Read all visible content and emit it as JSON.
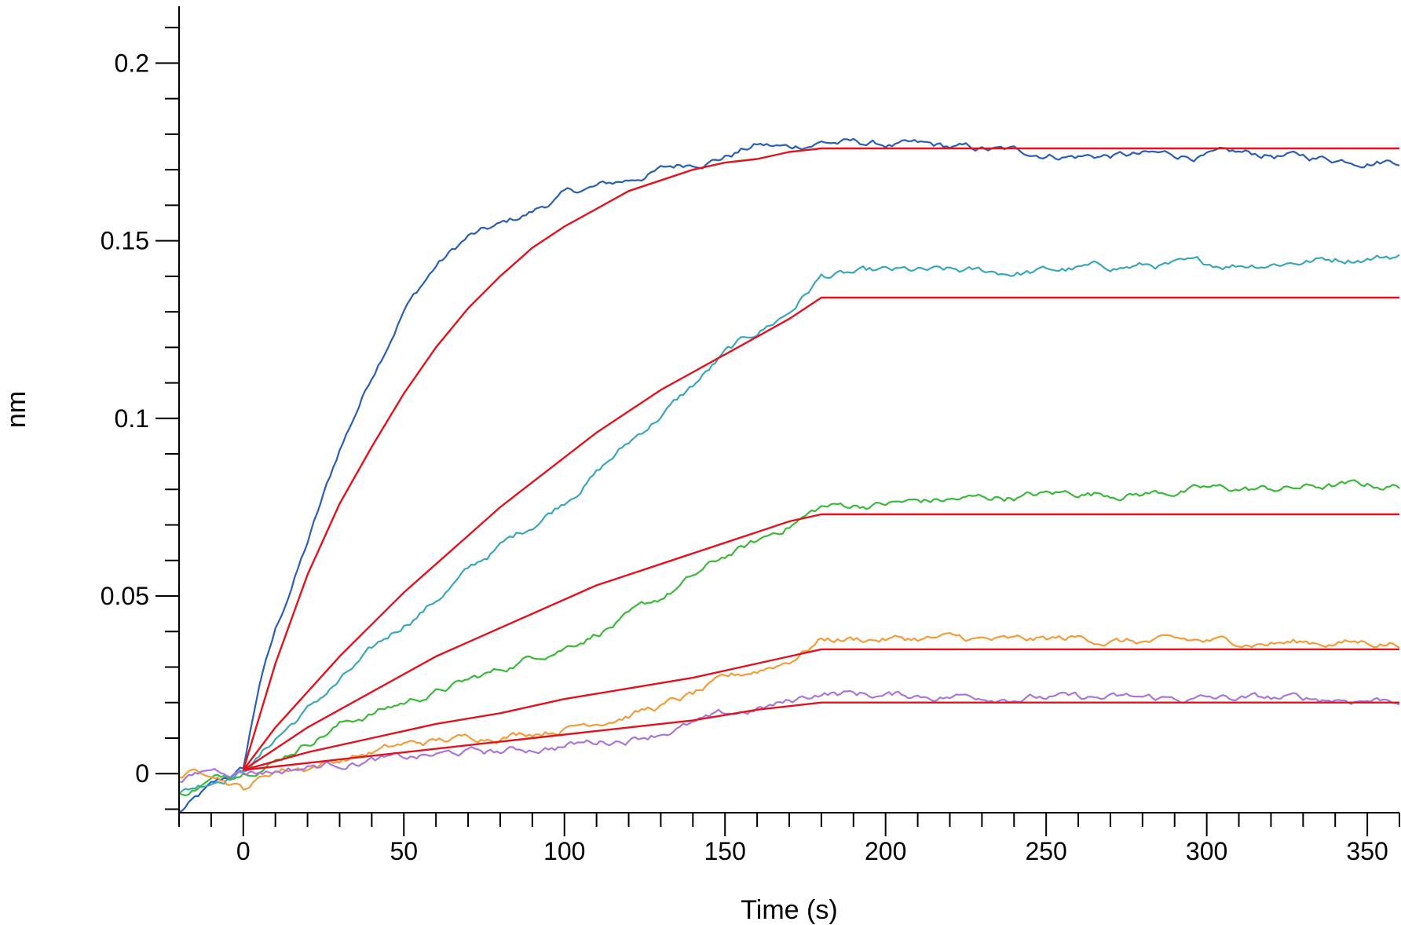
{
  "chart_data": {
    "type": "line",
    "title": "",
    "xlabel": "Time (s)",
    "ylabel": "nm",
    "xlim": [
      -20,
      360
    ],
    "ylim": [
      -0.011,
      0.216
    ],
    "x_ticks": [
      0,
      50,
      100,
      150,
      200,
      250,
      300,
      350
    ],
    "x_tick_labels": [
      "0",
      "50",
      "100",
      "150",
      "200",
      "250",
      "300",
      "350"
    ],
    "y_ticks": [
      0,
      0.05,
      0.1,
      0.15,
      0.2
    ],
    "y_tick_labels": [
      "0",
      "0.05",
      "0.1",
      "0.15",
      "0.2"
    ],
    "association_end_s": 180,
    "legend": "none",
    "grid": false,
    "series": [
      {
        "color": "#2b5fb3",
        "kind": "measured",
        "x": [
          -20,
          -10,
          0,
          5,
          10,
          20,
          30,
          40,
          50,
          60,
          70,
          80,
          90,
          100,
          110,
          120,
          130,
          140,
          150,
          160,
          170,
          180,
          200,
          220,
          240,
          260,
          280,
          300,
          320,
          340,
          360
        ],
        "y": [
          -0.011,
          -0.004,
          0.001,
          0.025,
          0.04,
          0.065,
          0.091,
          0.112,
          0.131,
          0.143,
          0.151,
          0.154,
          0.158,
          0.163,
          0.165,
          0.167,
          0.17,
          0.172,
          0.174,
          0.177,
          0.176,
          0.178,
          0.177,
          0.176,
          0.175,
          0.174,
          0.174,
          0.174,
          0.174,
          0.173,
          0.173
        ]
      },
      {
        "color": "#3ba7b8",
        "kind": "measured",
        "x": [
          -20,
          -10,
          0,
          5,
          10,
          20,
          30,
          40,
          50,
          60,
          70,
          80,
          90,
          100,
          110,
          120,
          130,
          140,
          150,
          160,
          170,
          180,
          200,
          220,
          240,
          260,
          280,
          300,
          320,
          340,
          360
        ],
        "y": [
          -0.006,
          -0.002,
          0.001,
          0.005,
          0.01,
          0.018,
          0.026,
          0.034,
          0.042,
          0.049,
          0.057,
          0.064,
          0.07,
          0.077,
          0.085,
          0.093,
          0.101,
          0.109,
          0.118,
          0.124,
          0.13,
          0.14,
          0.141,
          0.141,
          0.141,
          0.142,
          0.143,
          0.143,
          0.144,
          0.145,
          0.146
        ]
      },
      {
        "color": "#3db83a",
        "kind": "measured",
        "x": [
          -20,
          -10,
          0,
          10,
          20,
          30,
          40,
          50,
          60,
          70,
          80,
          90,
          100,
          110,
          120,
          130,
          140,
          150,
          160,
          170,
          180,
          200,
          220,
          240,
          260,
          280,
          300,
          320,
          340,
          360
        ],
        "y": [
          -0.006,
          -0.002,
          0.001,
          0.004,
          0.009,
          0.014,
          0.017,
          0.02,
          0.023,
          0.026,
          0.029,
          0.033,
          0.036,
          0.04,
          0.044,
          0.049,
          0.055,
          0.061,
          0.065,
          0.07,
          0.075,
          0.076,
          0.077,
          0.078,
          0.079,
          0.079,
          0.08,
          0.08,
          0.081,
          0.081
        ]
      },
      {
        "color": "#f39c3c",
        "kind": "measured",
        "x": [
          -20,
          -10,
          0,
          10,
          20,
          30,
          40,
          50,
          60,
          70,
          80,
          90,
          100,
          110,
          120,
          130,
          140,
          150,
          160,
          170,
          180,
          200,
          220,
          240,
          260,
          280,
          300,
          320,
          340,
          360
        ],
        "y": [
          -0.001,
          0.001,
          -0.004,
          0.001,
          0.002,
          0.004,
          0.006,
          0.008,
          0.009,
          0.01,
          0.011,
          0.012,
          0.013,
          0.015,
          0.017,
          0.019,
          0.022,
          0.026,
          0.029,
          0.032,
          0.038,
          0.038,
          0.038,
          0.037,
          0.038,
          0.037,
          0.037,
          0.037,
          0.037,
          0.037
        ]
      },
      {
        "color": "#a877d8",
        "kind": "measured",
        "x": [
          -20,
          -10,
          0,
          10,
          20,
          30,
          40,
          50,
          60,
          70,
          80,
          90,
          100,
          110,
          120,
          130,
          140,
          150,
          160,
          170,
          180,
          200,
          220,
          240,
          260,
          280,
          300,
          320,
          340,
          360
        ],
        "y": [
          -0.003,
          0.001,
          0.001,
          0.001,
          0.002,
          0.003,
          0.004,
          0.004,
          0.005,
          0.006,
          0.006,
          0.007,
          0.008,
          0.009,
          0.01,
          0.012,
          0.014,
          0.016,
          0.018,
          0.02,
          0.023,
          0.022,
          0.022,
          0.022,
          0.021,
          0.021,
          0.021,
          0.021,
          0.021,
          0.021
        ]
      },
      {
        "color": "#e0141e",
        "kind": "fit",
        "x": [
          0,
          10,
          20,
          30,
          40,
          50,
          60,
          70,
          80,
          90,
          100,
          110,
          120,
          130,
          140,
          150,
          160,
          170,
          180,
          360
        ],
        "y": [
          0.001,
          0.031,
          0.056,
          0.076,
          0.092,
          0.107,
          0.12,
          0.131,
          0.14,
          0.148,
          0.154,
          0.159,
          0.164,
          0.167,
          0.17,
          0.172,
          0.173,
          0.175,
          0.176,
          0.176
        ]
      },
      {
        "color": "#e0141e",
        "kind": "fit",
        "x": [
          0,
          10,
          20,
          30,
          40,
          50,
          60,
          70,
          80,
          90,
          100,
          110,
          120,
          130,
          140,
          150,
          160,
          170,
          180,
          360
        ],
        "y": [
          0.001,
          0.013,
          0.023,
          0.033,
          0.042,
          0.051,
          0.059,
          0.067,
          0.075,
          0.082,
          0.089,
          0.096,
          0.102,
          0.108,
          0.113,
          0.118,
          0.123,
          0.128,
          0.134,
          0.134
        ]
      },
      {
        "color": "#e0141e",
        "kind": "fit",
        "x": [
          0,
          10,
          20,
          30,
          40,
          50,
          60,
          70,
          80,
          90,
          100,
          110,
          120,
          130,
          140,
          150,
          160,
          170,
          180,
          360
        ],
        "y": [
          0.001,
          0.007,
          0.013,
          0.018,
          0.023,
          0.028,
          0.033,
          0.037,
          0.041,
          0.045,
          0.049,
          0.053,
          0.056,
          0.059,
          0.062,
          0.065,
          0.068,
          0.071,
          0.073,
          0.073
        ]
      },
      {
        "color": "#e0141e",
        "kind": "fit",
        "x": [
          0,
          20,
          40,
          60,
          80,
          100,
          120,
          140,
          160,
          180,
          360
        ],
        "y": [
          0.001,
          0.006,
          0.01,
          0.014,
          0.017,
          0.021,
          0.024,
          0.027,
          0.031,
          0.035,
          0.035
        ]
      },
      {
        "color": "#e0141e",
        "kind": "fit",
        "x": [
          0,
          20,
          40,
          60,
          80,
          100,
          120,
          140,
          160,
          180,
          360
        ],
        "y": [
          0.001,
          0.003,
          0.005,
          0.007,
          0.009,
          0.011,
          0.013,
          0.015,
          0.018,
          0.02,
          0.02
        ]
      }
    ]
  }
}
